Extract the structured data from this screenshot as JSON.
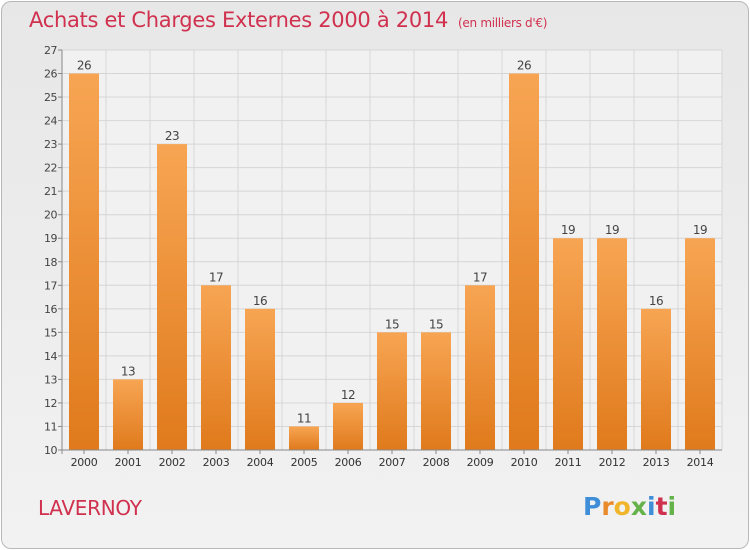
{
  "title": "Achats et Charges Externes 2000 à 2014",
  "subtitle": "(en milliers d'€)",
  "place": "LAVERNOY",
  "logo": {
    "p": "P",
    "r": "r",
    "o": "o",
    "x": "x",
    "i1": "i",
    "t": "t",
    "i2": "i"
  },
  "colors": {
    "bar_top": "#f7a553",
    "bar_bottom": "#e07a1c",
    "title": "#d0314f"
  },
  "chart_data": {
    "type": "bar",
    "categories": [
      "2000",
      "2001",
      "2002",
      "2003",
      "2004",
      "2005",
      "2006",
      "2007",
      "2008",
      "2009",
      "2010",
      "2011",
      "2012",
      "2013",
      "2014"
    ],
    "values": [
      26,
      13,
      23,
      17,
      16,
      11,
      12,
      15,
      15,
      17,
      26,
      19,
      19,
      16,
      19
    ],
    "ylim": [
      10,
      27
    ],
    "yticks": [
      10,
      11,
      12,
      13,
      14,
      15,
      16,
      17,
      18,
      19,
      20,
      21,
      22,
      23,
      24,
      25,
      26,
      27
    ],
    "grid": true
  }
}
